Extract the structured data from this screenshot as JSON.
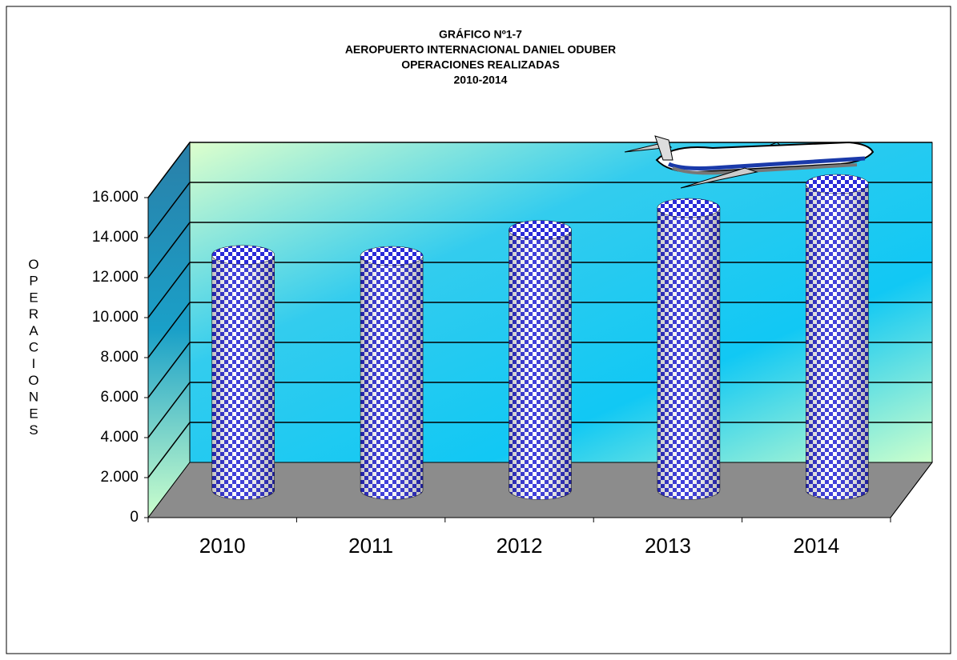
{
  "chart_data": {
    "type": "cylinder",
    "title": "GRÁFICO Nº1-7",
    "subtitle": [
      "AEROPUERTO INTERNACIONAL DANIEL ODUBER",
      "OPERACIONES REALIZADAS",
      "2010-2014"
    ],
    "y_label": "OPERACIONES",
    "categories": [
      "2010",
      "2011",
      "2012",
      "2013",
      "2014"
    ],
    "values": [
      11750,
      11700,
      13000,
      14100,
      15300
    ],
    "color": "#2a2ad8",
    "ylim": [
      0,
      16000
    ],
    "yticks": [
      0,
      {
        "value": 2000,
        "label": "2.000"
      },
      {
        "value": 4000,
        "label": "4.000"
      },
      {
        "value": 6000,
        "label": "6.000"
      },
      {
        "value": 8000,
        "label": "8.000"
      },
      {
        "value": 10000,
        "label": "10.000"
      },
      {
        "value": 12000,
        "label": "12.000"
      },
      {
        "value": 14000,
        "label": "14.000"
      },
      {
        "value": 16000,
        "label": "16.000"
      }
    ],
    "grid": true
  }
}
